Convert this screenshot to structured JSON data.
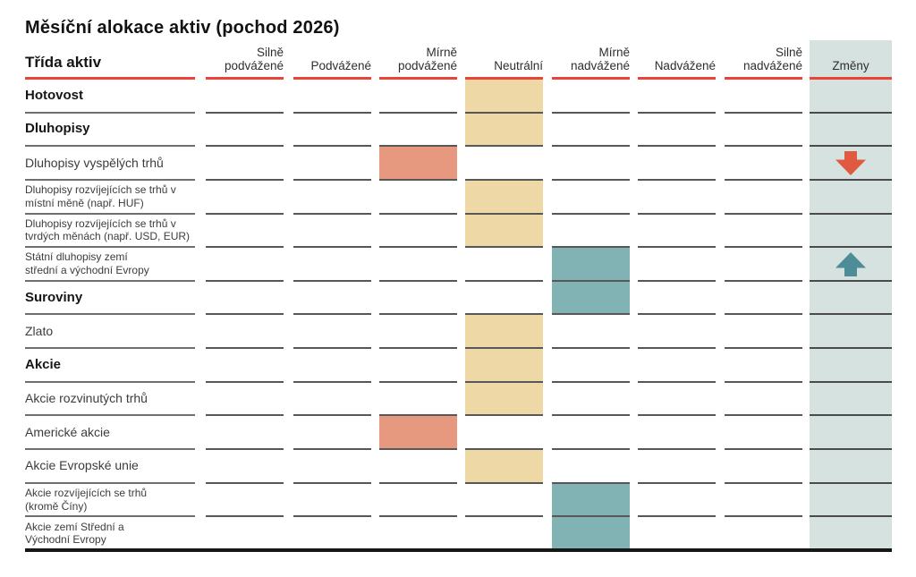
{
  "chart_data": {
    "type": "table",
    "title": "Měsíční alokace aktiv (pochod 2026)",
    "row_header": "Třída aktiv",
    "columns": [
      "Silně podvážené",
      "Podvážené",
      "Mírně podvážené",
      "Neutrální",
      "Mírně nadvážené",
      "Nadvážené",
      "Silně nadvážené"
    ],
    "changes_column": "Změny",
    "neutral_column": "Neutrální",
    "rows": [
      {
        "label": "Hotovost",
        "category": true,
        "allocation": "Neutrální",
        "change": ""
      },
      {
        "label": "Dluhopisy",
        "category": true,
        "allocation": "Neutrální",
        "change": ""
      },
      {
        "label": "Dluhopisy vyspělých trhů",
        "category": false,
        "allocation": "Mírně podvážené",
        "change": "down"
      },
      {
        "label": "Dluhopisy rozvíjejících se trhů v\nmístní měně (např. HUF)",
        "category": false,
        "allocation": "Neutrální",
        "change": ""
      },
      {
        "label": "Dluhopisy rozvíjejících se trhů v\ntvrdých měnách (např. USD, EUR)",
        "category": false,
        "allocation": "Neutrální",
        "change": ""
      },
      {
        "label": "Státní dluhopisy zemí\nstřední a východní Evropy",
        "category": false,
        "allocation": "Mírně nadvážené",
        "change": "up"
      },
      {
        "label": "Suroviny",
        "category": true,
        "allocation": "Mírně nadvážené",
        "change": ""
      },
      {
        "label": "Zlato",
        "category": false,
        "allocation": "Neutrální",
        "change": ""
      },
      {
        "label": "Akcie",
        "category": true,
        "allocation": "Neutrální",
        "change": ""
      },
      {
        "label": "Akcie rozvinutých trhů",
        "category": false,
        "allocation": "Neutrální",
        "change": ""
      },
      {
        "label": "Americké akcie",
        "category": false,
        "allocation": "Mírně podvážené",
        "change": ""
      },
      {
        "label": "Akcie Evropské unie",
        "category": false,
        "allocation": "Neutrální",
        "change": ""
      },
      {
        "label": "Akcie rozvíjejících se trhů\n(kromě Číny)",
        "category": false,
        "allocation": "Mírně nadvážené",
        "change": ""
      },
      {
        "label": "Akcie zemí Střední a\nVýchodní Evropy",
        "category": false,
        "allocation": "Mírně nadvážené",
        "change": ""
      }
    ],
    "legend_tones": {
      "underweight": "salmon fill left of Neutrální",
      "neutral": "tan fill in Neutrální",
      "overweight": "teal fill right of Neutrální"
    }
  },
  "colors": {
    "header_rule": "#EA4439",
    "underweight_fill": "#E6997F",
    "neutral_fill": "#EDD8A6",
    "overweight_fill": "#82B3B4",
    "changes_bg": "#D6E2E0",
    "arrow_down": "#E05A41",
    "arrow_up": "#4E8D97"
  },
  "icons": {
    "down": "arrow-down-icon",
    "up": "arrow-up-icon"
  }
}
